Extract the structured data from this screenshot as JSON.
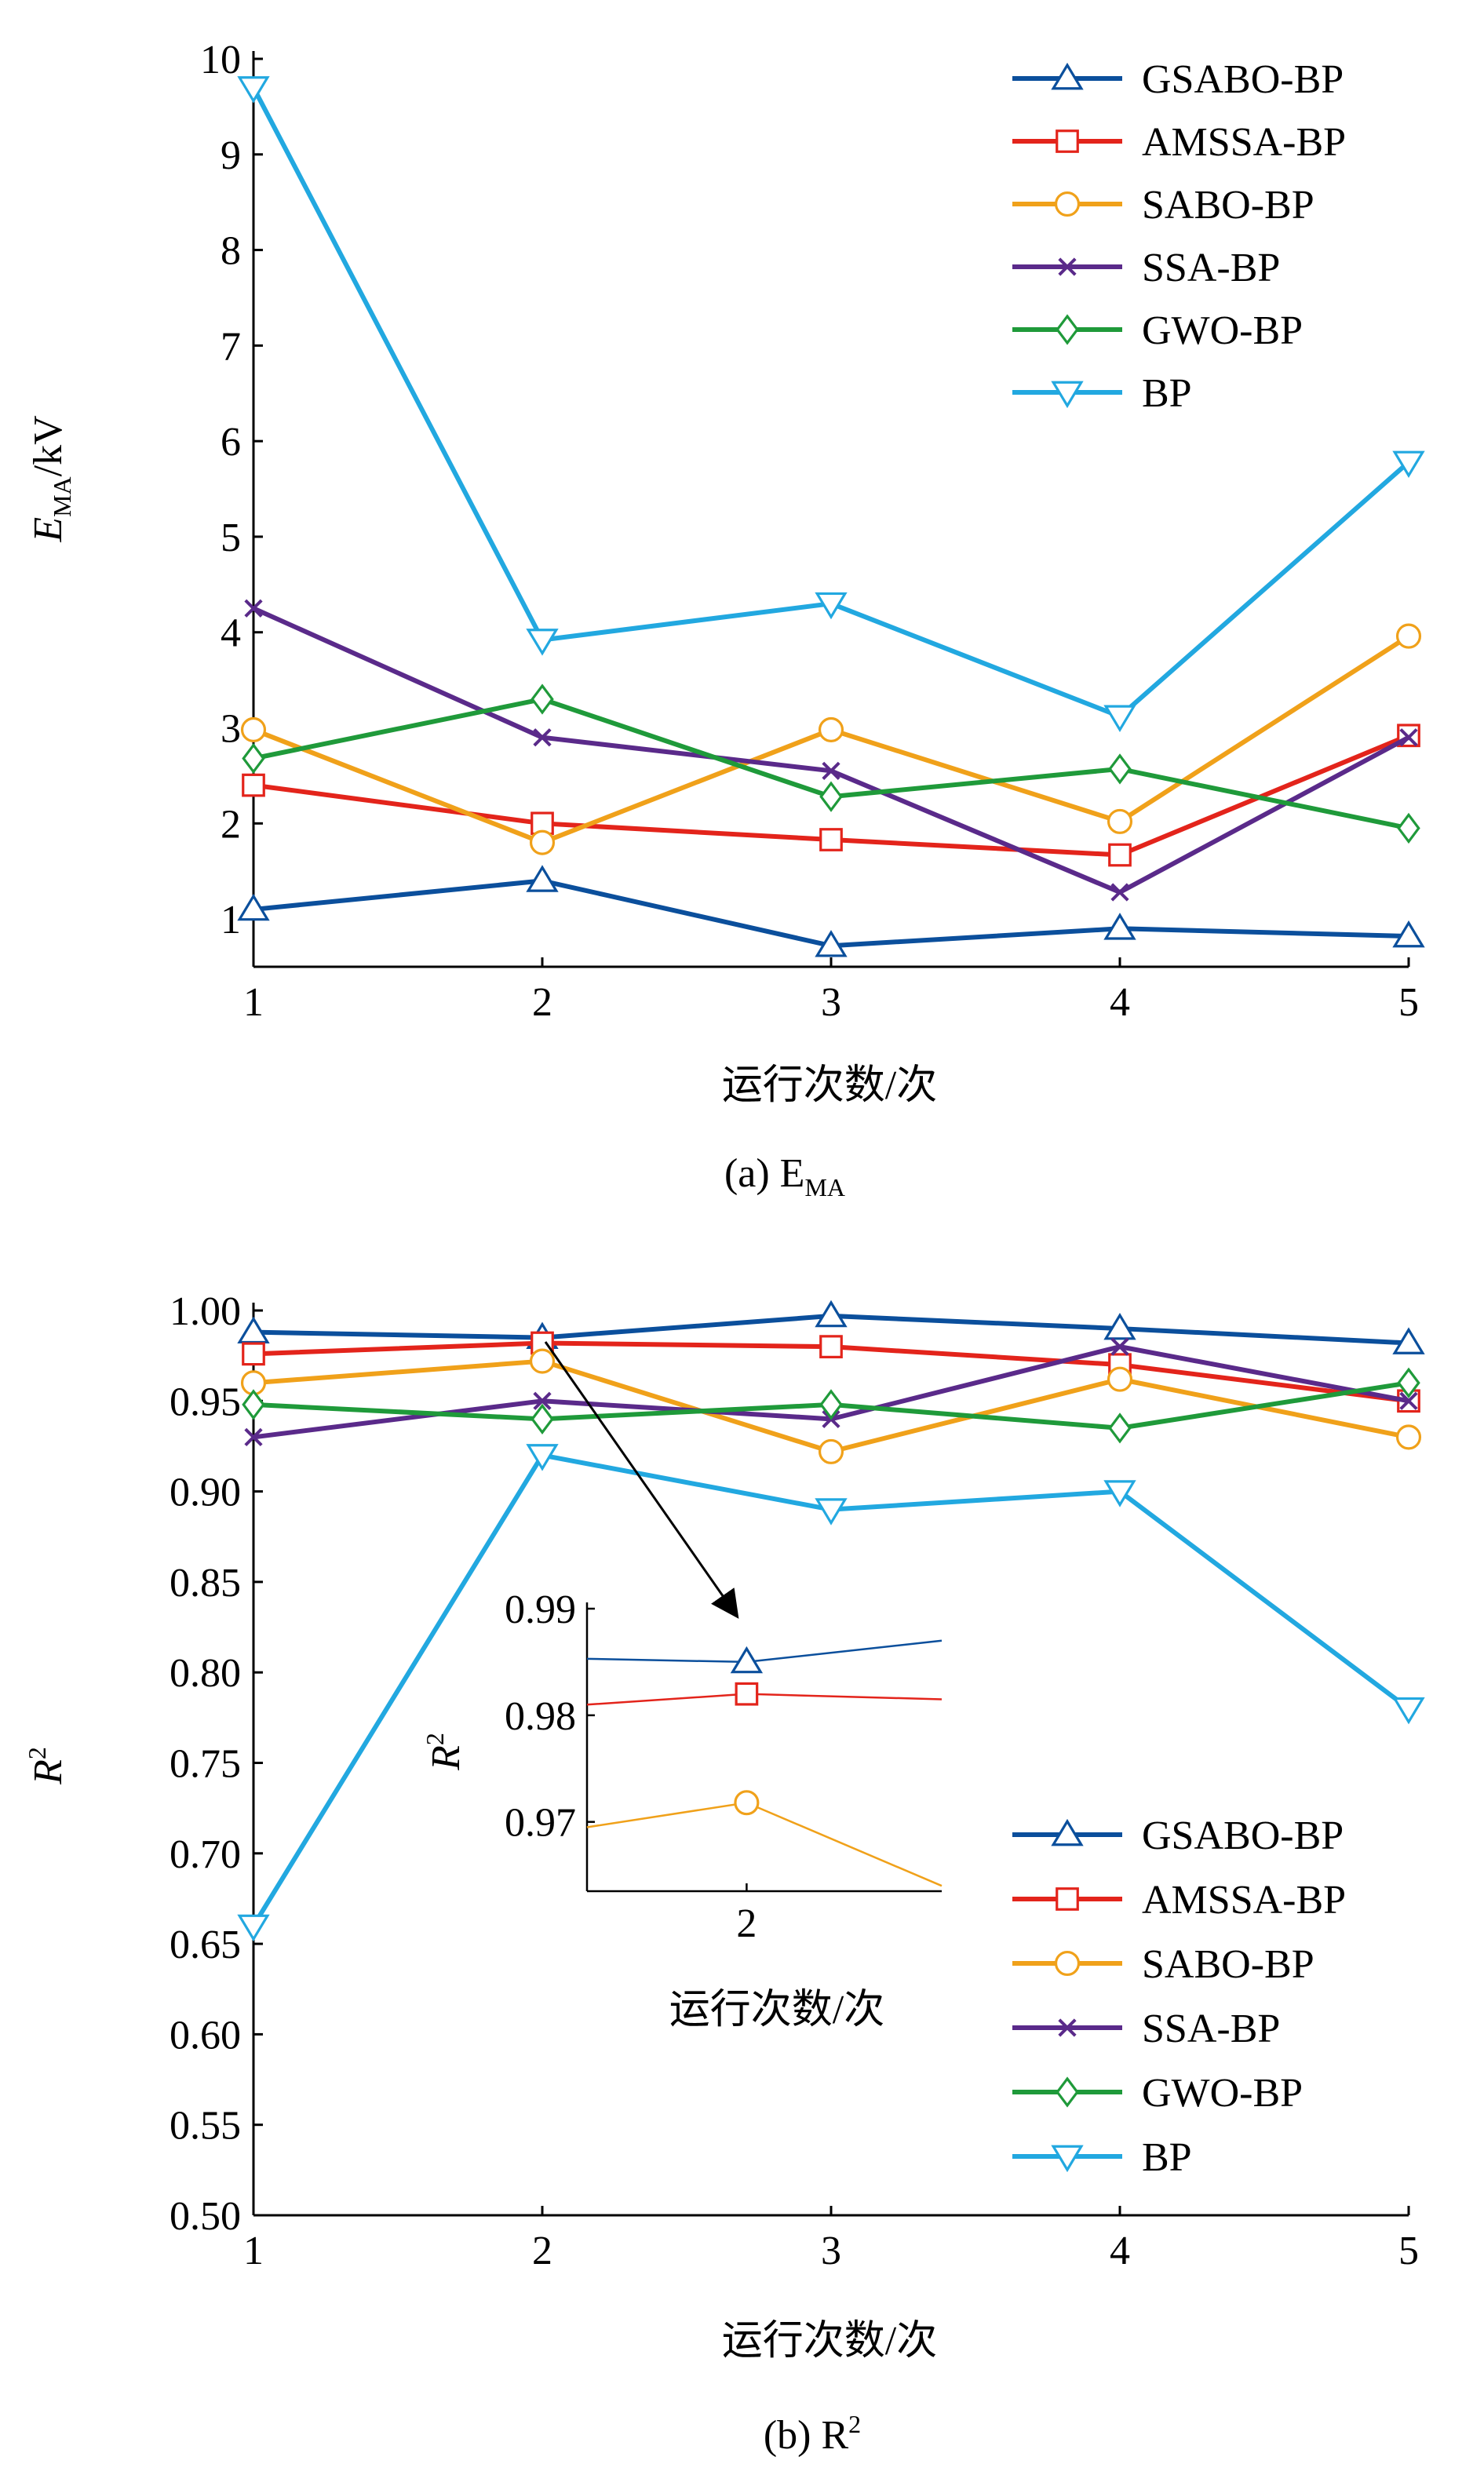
{
  "series_styles": [
    {
      "name": "GSABO-BP",
      "color": "#0b4f9c",
      "marker": "triangle-up"
    },
    {
      "name": "AMSSA-BP",
      "color": "#e3241b",
      "marker": "square"
    },
    {
      "name": "SABO-BP",
      "color": "#f0a11a",
      "marker": "circle"
    },
    {
      "name": "SSA-BP",
      "color": "#5a2a8a",
      "marker": "x"
    },
    {
      "name": "GWO-BP",
      "color": "#1f9a3a",
      "marker": "diamond"
    },
    {
      "name": "BP",
      "color": "#22a8e0",
      "marker": "triangle-down"
    }
  ],
  "chart_data": [
    {
      "type": "line",
      "panel_caption": "(a) E",
      "panel_caption_sub": "MA",
      "xlabel": "运行次数/次",
      "ylabel": "E",
      "ylabel_sub": "MA",
      "ylabel_unit": "/kV",
      "x": [
        1,
        2,
        3,
        4,
        5
      ],
      "xticks": [
        "1",
        "2",
        "3",
        "4",
        "5"
      ],
      "yticks": [
        "1",
        "2",
        "3",
        "4",
        "5",
        "6",
        "7",
        "8",
        "9",
        "10"
      ],
      "ylim": [
        0.5,
        10
      ],
      "legend_position": "top-right",
      "series": [
        {
          "name": "GSABO-BP",
          "values": [
            1.1,
            1.4,
            0.72,
            0.9,
            0.82
          ]
        },
        {
          "name": "AMSSA-BP",
          "values": [
            2.4,
            2.0,
            1.83,
            1.67,
            2.92
          ]
        },
        {
          "name": "SABO-BP",
          "values": [
            2.98,
            1.8,
            2.98,
            2.02,
            3.96
          ]
        },
        {
          "name": "SSA-BP",
          "values": [
            4.25,
            2.9,
            2.55,
            1.28,
            2.9
          ]
        },
        {
          "name": "GWO-BP",
          "values": [
            2.68,
            3.3,
            2.28,
            2.57,
            1.95
          ]
        },
        {
          "name": "BP",
          "values": [
            9.7,
            3.92,
            4.3,
            3.12,
            5.78
          ]
        }
      ]
    },
    {
      "type": "line",
      "panel_caption": "(b) R",
      "panel_caption_sup": "2",
      "xlabel": "运行次数/次",
      "ylabel": "R",
      "ylabel_sup": "2",
      "x": [
        1,
        2,
        3,
        4,
        5
      ],
      "xticks": [
        "1",
        "2",
        "3",
        "4",
        "5"
      ],
      "yticks": [
        "0.50",
        "0.55",
        "0.60",
        "0.65",
        "0.70",
        "0.75",
        "0.80",
        "0.85",
        "0.90",
        "0.95",
        "1.00"
      ],
      "ylim": [
        0.5,
        1.0
      ],
      "legend_position": "lower-right",
      "series": [
        {
          "name": "GSABO-BP",
          "values": [
            0.988,
            0.985,
            0.997,
            0.99,
            0.982
          ]
        },
        {
          "name": "AMSSA-BP",
          "values": [
            0.976,
            0.982,
            0.98,
            0.97,
            0.95
          ]
        },
        {
          "name": "SABO-BP",
          "values": [
            0.96,
            0.972,
            0.922,
            0.962,
            0.93
          ]
        },
        {
          "name": "SSA-BP",
          "values": [
            0.93,
            0.95,
            0.94,
            0.98,
            0.95
          ]
        },
        {
          "name": "GWO-BP",
          "values": [
            0.948,
            0.94,
            0.948,
            0.935,
            0.96
          ]
        },
        {
          "name": "BP",
          "values": [
            0.66,
            0.92,
            0.89,
            0.9,
            0.78
          ]
        }
      ],
      "inset": {
        "type": "line",
        "xlabel": "运行次数/次",
        "ylabel": "R",
        "ylabel_sup": "2",
        "xticks": [
          "2"
        ],
        "yticks": [
          "0.97",
          "0.98",
          "0.99"
        ],
        "xlim": [
          1.55,
          2.55
        ],
        "ylim": [
          0.9635,
          0.99
        ],
        "series": [
          {
            "name": "GSABO-BP",
            "points": [
              [
                1.55,
                0.9853
              ],
              [
                2,
                0.985
              ],
              [
                2.55,
                0.987
              ]
            ]
          },
          {
            "name": "AMSSA-BP",
            "points": [
              [
                1.55,
                0.981
              ],
              [
                2,
                0.982
              ],
              [
                2.55,
                0.9815
              ]
            ]
          },
          {
            "name": "SABO-BP",
            "points": [
              [
                1.55,
                0.9695
              ],
              [
                2,
                0.9718
              ],
              [
                2.55,
                0.964
              ]
            ]
          }
        ]
      }
    }
  ]
}
